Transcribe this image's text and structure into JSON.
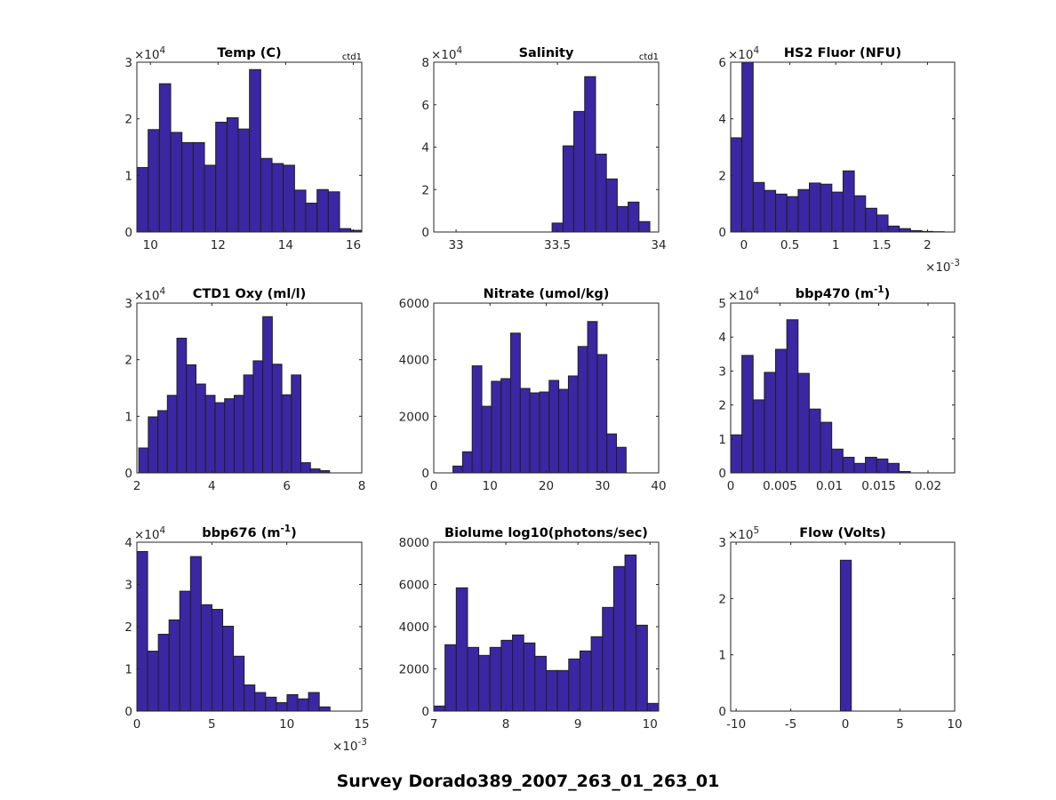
{
  "figure_title": "Survey Dorado389_2007_263_01_263_01",
  "style": {
    "bar_color": "#3b27a3",
    "edge_color": "#1f1f1f",
    "axis_color": "#262626"
  },
  "chart_data": [
    {
      "type": "bar",
      "title": "Temp (C)",
      "title_sup": "",
      "title_after": "",
      "corner_label": "ctd1",
      "xlim": [
        9.6,
        16.25
      ],
      "ylim": [
        0,
        3
      ],
      "y_multiplier": "×10",
      "y_exponent": "4",
      "x_multiplier": "",
      "x_exponent": "",
      "xticks": [
        10,
        12,
        14,
        16
      ],
      "xtick_labels": [
        "10",
        "12",
        "14",
        "16"
      ],
      "yticks": [
        0,
        1,
        2,
        3
      ],
      "ytick_labels": [
        "0",
        "1",
        "2",
        "3"
      ],
      "bin_start": 9.6,
      "bin_width": 0.333,
      "values": [
        1.14,
        1.81,
        2.62,
        1.76,
        1.58,
        1.58,
        1.18,
        1.94,
        2.02,
        1.82,
        2.87,
        1.3,
        1.21,
        1.18,
        0.74,
        0.51,
        0.75,
        0.71,
        0.06,
        0.03
      ]
    },
    {
      "type": "bar",
      "title": "Salinity",
      "title_sup": "",
      "title_after": "",
      "corner_label": "ctd1",
      "xlim": [
        32.89,
        34.0
      ],
      "ylim": [
        0,
        8
      ],
      "y_multiplier": "×10",
      "y_exponent": "4",
      "x_multiplier": "",
      "x_exponent": "",
      "xticks": [
        33,
        33.5,
        34
      ],
      "xtick_labels": [
        "33",
        "33.5",
        "34"
      ],
      "yticks": [
        0,
        2,
        4,
        6,
        8
      ],
      "ytick_labels": [
        "0",
        "2",
        "4",
        "6",
        "8"
      ],
      "bin_start": 33.474,
      "bin_width": 0.0536,
      "values": [
        0.42,
        4.06,
        5.68,
        7.32,
        3.67,
        2.5,
        1.2,
        1.41,
        0.49
      ]
    },
    {
      "type": "bar",
      "title": "HS2 Fluor (NFU)",
      "title_sup": "",
      "title_after": "",
      "corner_label": "",
      "xlim": [
        -0.145,
        2.296
      ],
      "ylim": [
        0,
        6
      ],
      "y_multiplier": "×10",
      "y_exponent": "4",
      "x_multiplier": "×10",
      "x_exponent": "-3",
      "xticks": [
        0,
        0.5,
        1,
        1.5,
        2
      ],
      "xtick_labels": [
        "0",
        "0.5",
        "1",
        "1.5",
        "2"
      ],
      "yticks": [
        0,
        2,
        4,
        6
      ],
      "ytick_labels": [
        "0",
        "2",
        "4",
        "6"
      ],
      "bin_start": -0.145,
      "bin_width": 0.1225,
      "values": [
        3.33,
        6.0,
        1.75,
        1.47,
        1.34,
        1.25,
        1.5,
        1.73,
        1.69,
        1.41,
        2.16,
        1.28,
        0.84,
        0.6,
        0.21,
        0.12,
        0.05,
        0.02,
        0.01
      ]
    },
    {
      "type": "bar",
      "title": "CTD1 Oxy (ml/l)",
      "title_sup": "",
      "title_after": "",
      "corner_label": "",
      "xlim": [
        2,
        8
      ],
      "ylim": [
        0,
        3
      ],
      "y_multiplier": "×10",
      "y_exponent": "4",
      "x_multiplier": "",
      "x_exponent": "",
      "xticks": [
        2,
        4,
        6,
        8
      ],
      "xtick_labels": [
        "2",
        "4",
        "6",
        "8"
      ],
      "yticks": [
        0,
        1,
        2,
        3
      ],
      "ytick_labels": [
        "0",
        "1",
        "2",
        "3"
      ],
      "bin_start": 2.05,
      "bin_width": 0.2545,
      "values": [
        0.44,
        0.99,
        1.1,
        1.37,
        2.38,
        1.91,
        1.57,
        1.37,
        1.24,
        1.31,
        1.37,
        1.73,
        1.98,
        2.76,
        1.92,
        1.38,
        1.73,
        0.18,
        0.07,
        0.04
      ]
    },
    {
      "type": "bar",
      "title": "Nitrate (umol/kg)",
      "title_sup": "",
      "title_after": "",
      "corner_label": "",
      "xlim": [
        0,
        40
      ],
      "ylim": [
        0,
        6000
      ],
      "y_multiplier": "",
      "y_exponent": "",
      "x_multiplier": "",
      "x_exponent": "",
      "xticks": [
        0,
        10,
        20,
        30,
        40
      ],
      "xtick_labels": [
        "0",
        "10",
        "20",
        "30",
        "40"
      ],
      "yticks": [
        0,
        2000,
        4000,
        6000
      ],
      "ytick_labels": [
        "0",
        "2000",
        "4000",
        "6000"
      ],
      "bin_start": 3.41,
      "bin_width": 1.711,
      "values": [
        241,
        746,
        3783,
        2354,
        3237,
        3331,
        4939,
        2984,
        2827,
        2858,
        3268,
        2953,
        3426,
        4466,
        5349,
        4182,
        1377,
        904
      ]
    },
    {
      "type": "bar",
      "title": "bbp470 (m",
      "title_sup": "-1",
      "title_after": ")",
      "corner_label": "",
      "xlim": [
        0,
        0.0227
      ],
      "ylim": [
        0,
        5
      ],
      "y_multiplier": "×10",
      "y_exponent": "4",
      "x_multiplier": "",
      "x_exponent": "",
      "xticks": [
        0,
        0.005,
        0.01,
        0.015,
        0.02
      ],
      "xtick_labels": [
        "0",
        "0.005",
        "0.01",
        "0.015",
        "0.02"
      ],
      "yticks": [
        0,
        1,
        2,
        3,
        4,
        5
      ],
      "ytick_labels": [
        "0",
        "1",
        "2",
        "3",
        "4",
        "5"
      ],
      "bin_start": 0,
      "bin_width": 0.001138,
      "values": [
        1.12,
        3.46,
        2.15,
        2.96,
        3.64,
        4.51,
        2.93,
        1.88,
        1.49,
        0.7,
        0.46,
        0.28,
        0.46,
        0.41,
        0.28,
        0.04
      ]
    },
    {
      "type": "bar",
      "title": "bbp676 (m",
      "title_sup": "-1",
      "title_after": ")",
      "corner_label": "",
      "xlim": [
        0,
        15
      ],
      "ylim": [
        0,
        4
      ],
      "y_multiplier": "×10",
      "y_exponent": "4",
      "x_multiplier": "×10",
      "x_exponent": "-3",
      "xticks": [
        0,
        5,
        10,
        15
      ],
      "xtick_labels": [
        "0",
        "5",
        "10",
        "15"
      ],
      "yticks": [
        0,
        1,
        2,
        3,
        4
      ],
      "ytick_labels": [
        "0",
        "1",
        "2",
        "3",
        "4"
      ],
      "bin_start": 0,
      "bin_width": 0.7155,
      "values": [
        3.78,
        1.42,
        1.82,
        2.16,
        2.84,
        3.66,
        2.52,
        2.41,
        2.01,
        1.3,
        0.62,
        0.44,
        0.33,
        0.2,
        0.39,
        0.29,
        0.44,
        0.1
      ]
    },
    {
      "type": "bar",
      "title": "Biolume log10(photons/sec)",
      "title_sup": "",
      "title_after": "",
      "corner_label": "",
      "xlim": [
        7,
        10.12
      ],
      "ylim": [
        0,
        8000
      ],
      "y_multiplier": "",
      "y_exponent": "",
      "x_multiplier": "",
      "x_exponent": "",
      "xticks": [
        7,
        8,
        9,
        10
      ],
      "xtick_labels": [
        "7",
        "8",
        "9",
        "10"
      ],
      "yticks": [
        0,
        2000,
        4000,
        6000,
        8000
      ],
      "ytick_labels": [
        "0",
        "2000",
        "4000",
        "6000",
        "8000"
      ],
      "bin_start": 7,
      "bin_width": 0.156,
      "values": [
        239,
        3144,
        5839,
        3018,
        2639,
        3018,
        3354,
        3607,
        3228,
        2596,
        1923,
        1923,
        2470,
        2849,
        3523,
        4912,
        6849,
        7396,
        4070,
        365
      ]
    },
    {
      "type": "bar",
      "title": "Flow (Volts)",
      "title_sup": "",
      "title_after": "",
      "corner_label": "",
      "xlim": [
        -10.5,
        10
      ],
      "ylim": [
        0,
        3
      ],
      "y_multiplier": "×10",
      "y_exponent": "5",
      "x_multiplier": "",
      "x_exponent": "",
      "xticks": [
        -10,
        -5,
        0,
        5,
        10
      ],
      "xtick_labels": [
        "-10",
        "-5",
        "0",
        "5",
        "10"
      ],
      "yticks": [
        0,
        1,
        2,
        3
      ],
      "ytick_labels": [
        "0",
        "1",
        "2",
        "3"
      ],
      "bin_start": -0.46,
      "bin_width": 1.0,
      "values": [
        2.68
      ]
    }
  ]
}
